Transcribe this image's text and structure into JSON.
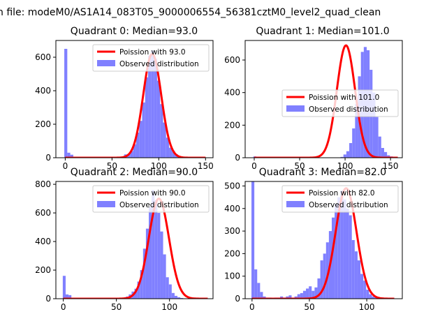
{
  "figure": {
    "suptitle": "n file: modeM0/AS1A14_083T05_9000006554_56381cztM0_level2_quad_clean"
  },
  "colors": {
    "bar": "#8080ff",
    "fit": "#ff0000",
    "frame": "#000000",
    "background": "#ffffff"
  },
  "chart_data": [
    {
      "type": "bar",
      "title": "Quadrant 0: Median=93.0",
      "xlim": [
        -10,
        158
      ],
      "ylim": [
        0,
        700
      ],
      "xticks": [
        0,
        50,
        100,
        150
      ],
      "yticks": [
        0,
        200,
        400,
        600
      ],
      "bin_start": -1,
      "bin_width": 3.2,
      "values": [
        650,
        30,
        18,
        0,
        0,
        0,
        0,
        0,
        0,
        0,
        0,
        0,
        0,
        0,
        0,
        0,
        0,
        0,
        0,
        0,
        20,
        22,
        40,
        80,
        150,
        220,
        330,
        480,
        610,
        640,
        590,
        460,
        320,
        210,
        120,
        60,
        40,
        20,
        10,
        5,
        0,
        0,
        0,
        0,
        0,
        0,
        0,
        0,
        0,
        0
      ],
      "fit": {
        "mean": 93.0,
        "sd": 9.6,
        "peak": 620,
        "x_range": [
          0,
          150
        ]
      },
      "legend": {
        "fit_label": "Poission with 93.0",
        "hist_label": "Observed distribution",
        "loc": "upper right"
      }
    },
    {
      "type": "bar",
      "title": "Quadrant 1: Median=101.0",
      "xlim": [
        -10,
        163
      ],
      "ylim": [
        0,
        720
      ],
      "xticks": [
        0,
        50,
        100,
        150
      ],
      "yticks": [
        0,
        200,
        400,
        600
      ],
      "bin_start": -1,
      "bin_width": 3.2,
      "values": [
        8,
        0,
        0,
        0,
        0,
        0,
        0,
        0,
        0,
        0,
        0,
        0,
        0,
        0,
        0,
        0,
        0,
        0,
        0,
        0,
        0,
        0,
        0,
        0,
        0,
        0,
        0,
        0,
        0,
        0,
        5,
        20,
        40,
        90,
        180,
        330,
        500,
        650,
        680,
        660,
        540,
        400,
        250,
        130,
        60,
        35,
        15,
        8,
        3,
        1
      ],
      "fit": {
        "mean": 101.0,
        "sd": 10.0,
        "peak": 690,
        "x_range": [
          0,
          158
        ]
      },
      "legend": {
        "fit_label": "Poission with 101.0",
        "hist_label": "Observed distribution",
        "loc": "center right"
      }
    },
    {
      "type": "bar",
      "title": "Quadrant 2: Median=90.0",
      "xlim": [
        -7,
        141
      ],
      "ylim": [
        0,
        820
      ],
      "xticks": [
        0,
        50,
        100
      ],
      "yticks": [
        0,
        200,
        400,
        600,
        800
      ],
      "bin_start": -0.5,
      "bin_width": 2.7,
      "values": [
        160,
        30,
        25,
        0,
        0,
        0,
        0,
        0,
        0,
        0,
        0,
        0,
        0,
        0,
        0,
        0,
        0,
        0,
        0,
        0,
        0,
        0,
        15,
        30,
        50,
        70,
        120,
        200,
        350,
        490,
        640,
        760,
        690,
        600,
        470,
        310,
        150,
        100,
        40,
        20,
        10,
        5,
        2,
        0,
        0,
        0,
        0,
        0,
        0,
        0,
        0
      ],
      "fit": {
        "mean": 90.0,
        "sd": 9.5,
        "peak": 700,
        "x_range": [
          0,
          136
        ]
      },
      "legend": {
        "fit_label": "Poission with 90.0",
        "hist_label": "Observed distribution",
        "loc": "upper right"
      }
    },
    {
      "type": "bar",
      "title": "Quadrant 3: Median=82.0",
      "xlim": [
        -6,
        131
      ],
      "ylim": [
        0,
        520
      ],
      "xticks": [
        0,
        50,
        100
      ],
      "yticks": [
        0,
        100,
        200,
        300,
        400,
        500
      ],
      "bin_start": -0.5,
      "bin_width": 2.5,
      "values": [
        520,
        130,
        70,
        30,
        10,
        5,
        5,
        0,
        5,
        5,
        10,
        5,
        10,
        15,
        5,
        10,
        20,
        25,
        35,
        45,
        55,
        35,
        50,
        90,
        170,
        200,
        250,
        300,
        360,
        420,
        450,
        480,
        440,
        400,
        370,
        260,
        210,
        170,
        110,
        80,
        40,
        20,
        10,
        5,
        5,
        0,
        0,
        0,
        0,
        0
      ],
      "fit": {
        "mean": 82.0,
        "sd": 9.1,
        "peak": 490,
        "x_range": [
          0,
          124
        ]
      },
      "legend": {
        "fit_label": "Poission with 82.0",
        "hist_label": "Observed distribution",
        "loc": "upper right"
      }
    }
  ]
}
